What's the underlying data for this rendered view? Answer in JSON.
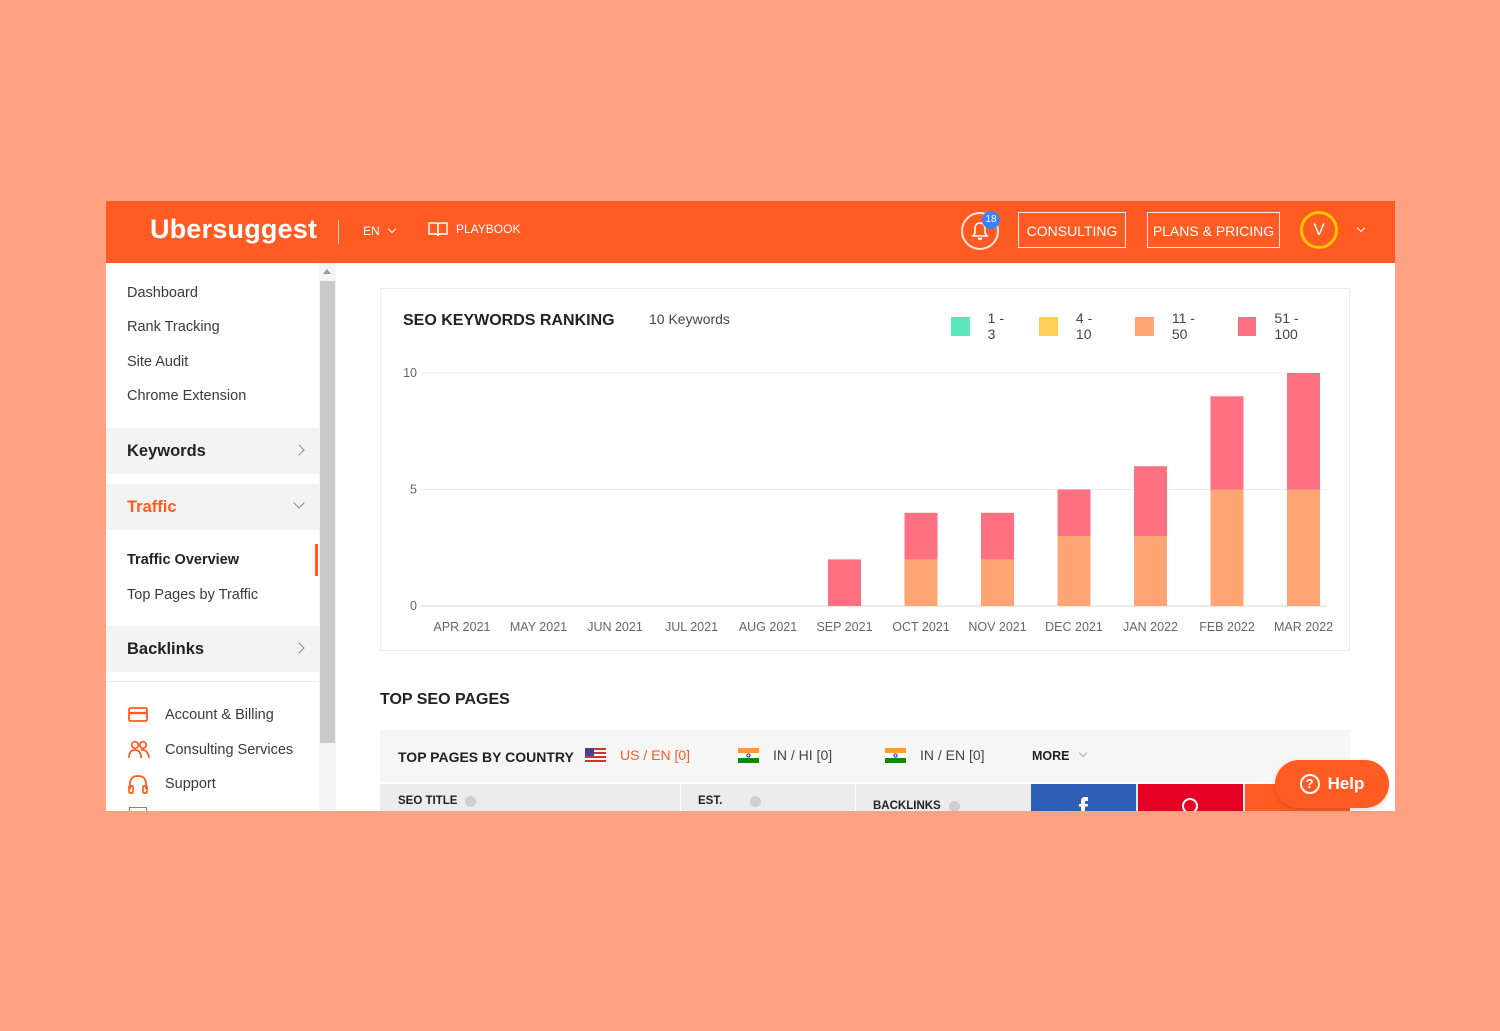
{
  "header": {
    "logo": "Ubersuggest",
    "language": "EN",
    "playbook": "PLAYBOOK",
    "notifications_count": "18",
    "consulting": "CONSULTING",
    "plans_pricing": "PLANS & PRICING",
    "avatar_initial": "V"
  },
  "sidebar": {
    "links": [
      "Dashboard",
      "Rank Tracking",
      "Site Audit",
      "Chrome Extension"
    ],
    "keywords": "Keywords",
    "traffic": "Traffic",
    "traffic_items": [
      "Traffic Overview",
      "Top Pages by Traffic"
    ],
    "backlinks": "Backlinks",
    "utility": [
      "Account & Billing",
      "Consulting Services",
      "Support"
    ]
  },
  "ranking_card": {
    "title": "SEO KEYWORDS RANKING",
    "subtitle": "10 Keywords",
    "legend": [
      {
        "label": "1 - 3",
        "color": "#5EE6BC"
      },
      {
        "label": "4 - 10",
        "color": "#FFCF57"
      },
      {
        "label": "11 - 50",
        "color": "#FFA574"
      },
      {
        "label": "51 - 100",
        "color": "#FF7182"
      }
    ]
  },
  "chart_data": {
    "type": "bar",
    "stacked": true,
    "categories": [
      "APR 2021",
      "MAY 2021",
      "JUN 2021",
      "JUL 2021",
      "AUG 2021",
      "SEP 2021",
      "OCT 2021",
      "NOV 2021",
      "DEC 2021",
      "JAN 2022",
      "FEB 2022",
      "MAR 2022"
    ],
    "series": [
      {
        "name": "1 - 3",
        "color": "#5EE6BC",
        "values": [
          0,
          0,
          0,
          0,
          0,
          0,
          0,
          0,
          0,
          0,
          0,
          0
        ]
      },
      {
        "name": "4 - 10",
        "color": "#FFCF57",
        "values": [
          0,
          0,
          0,
          0,
          0,
          0,
          0,
          0,
          0,
          0,
          0,
          0
        ]
      },
      {
        "name": "11 - 50",
        "color": "#FFA574",
        "values": [
          0,
          0,
          0,
          0,
          0,
          0,
          2,
          2,
          3,
          3,
          5,
          5
        ]
      },
      {
        "name": "51 - 100",
        "color": "#FF7182",
        "values": [
          0,
          0,
          0,
          0,
          0,
          2,
          2,
          2,
          2,
          3,
          4,
          5
        ]
      }
    ],
    "yticks": [
      0,
      5,
      10
    ],
    "ylim": [
      0,
      10
    ],
    "grid": true
  },
  "top_pages": {
    "title": "TOP SEO PAGES",
    "by_country": "TOP PAGES BY COUNTRY",
    "countries": [
      {
        "label": "US / EN  [0]",
        "active": true
      },
      {
        "label": "IN / HI  [0]",
        "active": false
      },
      {
        "label": "IN / EN  [0]",
        "active": false
      }
    ],
    "more": "MORE",
    "columns": [
      "SEO TITLE",
      "EST.",
      "BACKLINKS"
    ],
    "share_colors": [
      "#2D5EB6",
      "#E60023",
      "#FF5B22"
    ]
  },
  "help": "Help"
}
